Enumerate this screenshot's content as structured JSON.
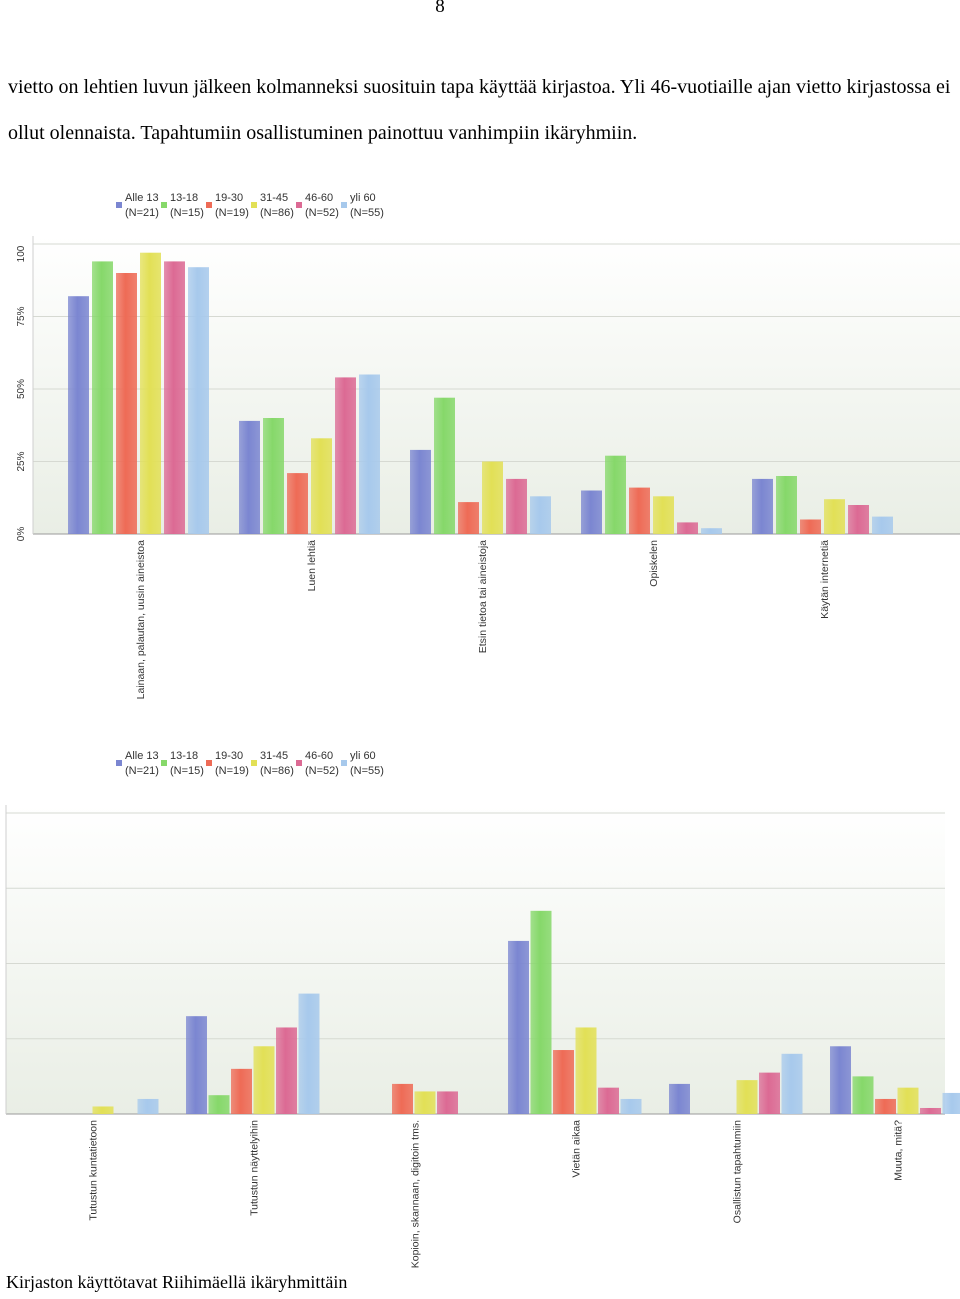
{
  "page_number": "8",
  "paragraph": "vietto on lehtien luvun jälkeen kolmanneksi suosituin tapa käyttää kirjastoa. Yli 46-vuotiaille ajan vietto kirjastossa ei ollut olennaista. Tapahtumiin osallistuminen painottuu vanhimpiin ikäryhmiin.",
  "footer": "Kirjaston käyttötavat Riihimäellä ikäryhmittäin",
  "colors": [
    "#7b86d1",
    "#86d86a",
    "#ee6b56",
    "#e2e056",
    "#dc6a94",
    "#a7c9ec"
  ],
  "chart_data": [
    {
      "type": "bar",
      "legend": [
        {
          "name": "Alle 13",
          "n": "(N=21)"
        },
        {
          "name": "13-18",
          "n": "(N=15)"
        },
        {
          "name": "19-30",
          "n": "(N=19)"
        },
        {
          "name": "31-45",
          "n": "(N=86)"
        },
        {
          "name": "46-60",
          "n": "(N=52)"
        },
        {
          "name": "yli 60",
          "n": "(N=55)"
        }
      ],
      "ylim": [
        0,
        100
      ],
      "yticks": [
        "0%",
        "25%",
        "50%",
        "75%",
        "100"
      ],
      "yticks_values": [
        0,
        25,
        50,
        75,
        100
      ],
      "categories": [
        "Lainaan, palautan, uusin aineistoa",
        "Luen lehtiä",
        "Etsin tietoa tai aineistoja",
        "Opiskelen",
        "Käytän internetiä"
      ],
      "series": [
        {
          "name": "Alle 13",
          "values": [
            82,
            39,
            29,
            15,
            19
          ]
        },
        {
          "name": "13-18",
          "values": [
            94,
            40,
            47,
            27,
            20
          ]
        },
        {
          "name": "19-30",
          "values": [
            90,
            21,
            11,
            16,
            5
          ]
        },
        {
          "name": "31-45",
          "values": [
            97,
            33,
            25,
            13,
            12
          ]
        },
        {
          "name": "46-60",
          "values": [
            94,
            54,
            19,
            4,
            10
          ]
        },
        {
          "name": "yli 60",
          "values": [
            92,
            55,
            13,
            2,
            6
          ]
        }
      ]
    },
    {
      "type": "bar",
      "legend": [
        {
          "name": "Alle 13",
          "n": "(N=21)"
        },
        {
          "name": "13-18",
          "n": "(N=15)"
        },
        {
          "name": "19-30",
          "n": "(N=19)"
        },
        {
          "name": "31-45",
          "n": "(N=86)"
        },
        {
          "name": "46-60",
          "n": "(N=52)"
        },
        {
          "name": "yli 60",
          "n": "(N=55)"
        }
      ],
      "ylim": [
        0,
        40
      ],
      "yticks_values": [
        0,
        10,
        20,
        30,
        40
      ],
      "categories": [
        "Tutustun kuntatietoon",
        "Tutustun näyttelyihin",
        "Kopioin, skannaan, digitoin tms.",
        "Vietän aikaa",
        "Osallistun tapahtumiin",
        "Muuta, mitä?"
      ],
      "series": [
        {
          "name": "Alle 13",
          "values": [
            0,
            13,
            0,
            23,
            4,
            9
          ]
        },
        {
          "name": "13-18",
          "values": [
            0,
            2.5,
            0,
            27,
            0,
            5
          ]
        },
        {
          "name": "19-30",
          "values": [
            0,
            6,
            4,
            8.5,
            0,
            2
          ]
        },
        {
          "name": "31-45",
          "values": [
            1,
            9,
            3,
            11.5,
            4.5,
            3.5
          ]
        },
        {
          "name": "46-60",
          "values": [
            0,
            11.5,
            3,
            3.5,
            5.5,
            0.8
          ]
        },
        {
          "name": "yli 60",
          "values": [
            2,
            16,
            0,
            2,
            8,
            2.8
          ]
        }
      ]
    }
  ]
}
